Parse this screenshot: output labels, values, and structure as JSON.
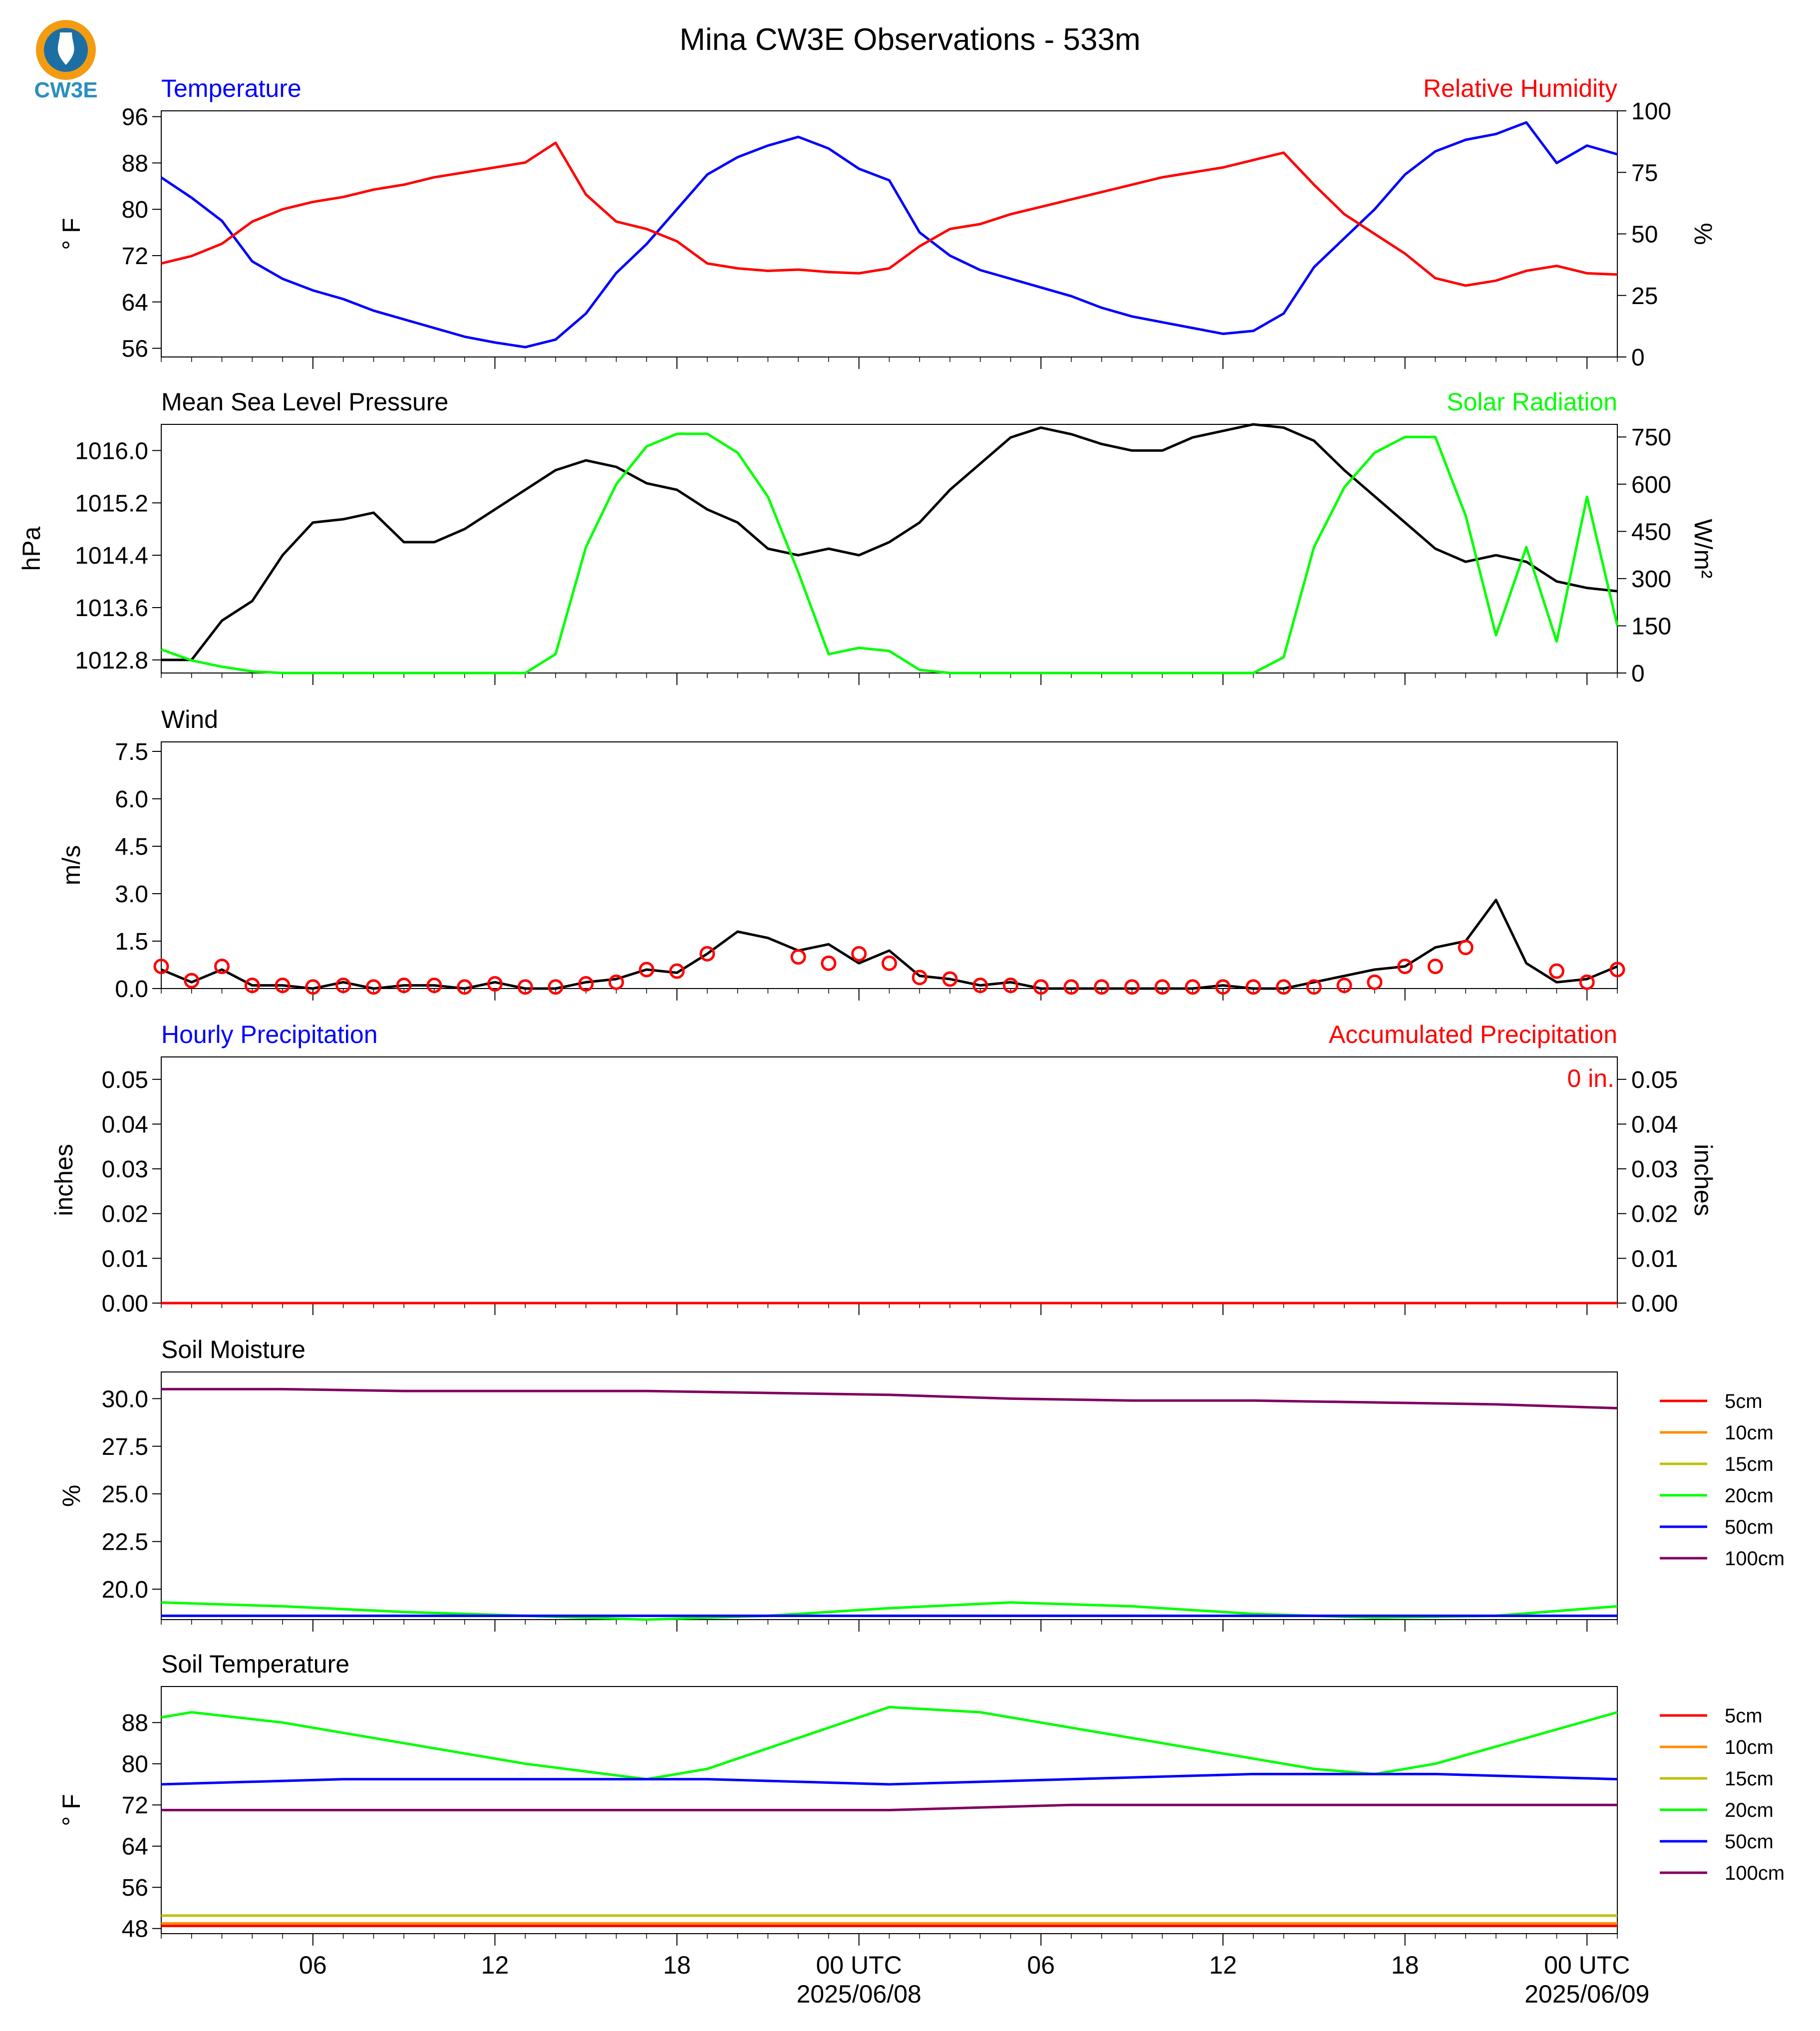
{
  "page": {
    "title": "Mina CW3E Observations - 533m",
    "logo_text": "CW3E",
    "colors": {
      "blue": "#0000ff",
      "red": "#ff0000",
      "green": "#00ff00",
      "black": "#000000",
      "orange": "#ff8c00",
      "olive": "#bfbf00",
      "purple": "#800060"
    }
  },
  "x_axis": {
    "range_hours": [
      0,
      48
    ],
    "ticks": [
      {
        "h": 5,
        "label": "06",
        "sub": ""
      },
      {
        "h": 11,
        "label": "12",
        "sub": ""
      },
      {
        "h": 17,
        "label": "18",
        "sub": ""
      },
      {
        "h": 23,
        "label": "00 UTC",
        "sub": "2025/06/08"
      },
      {
        "h": 29,
        "label": "06",
        "sub": ""
      },
      {
        "h": 35,
        "label": "12",
        "sub": ""
      },
      {
        "h": 41,
        "label": "18",
        "sub": ""
      },
      {
        "h": 47,
        "label": "00 UTC",
        "sub": "2025/06/09"
      }
    ]
  },
  "chart_data": [
    {
      "type": "line",
      "left_title": "Temperature",
      "right_title": "Relative Humidity",
      "ylabel": "° F",
      "ylabel_right": "%",
      "ylim": [
        54.5,
        97
      ],
      "yticks": [
        "56",
        "64",
        "72",
        "80",
        "88",
        "96"
      ],
      "ylim_right": [
        0,
        100
      ],
      "yticks_right": [
        "0",
        "25",
        "50",
        "75",
        "100"
      ],
      "series": [
        {
          "axis": "left",
          "color": "#0000ff",
          "x": [
            0,
            1,
            2,
            3,
            4,
            5,
            6,
            7,
            8,
            9,
            10,
            11,
            12,
            13,
            14,
            15,
            16,
            17,
            18,
            19,
            20,
            21,
            22,
            23,
            24,
            25,
            26,
            27,
            28,
            29,
            30,
            31,
            32,
            33,
            34,
            35,
            36,
            37,
            38,
            39,
            40,
            41,
            42,
            43,
            44,
            45,
            46,
            47,
            48
          ],
          "y": [
            85.5,
            82,
            78,
            71,
            68,
            66,
            64.5,
            62.5,
            61,
            59.5,
            58,
            57,
            56.2,
            57.5,
            62,
            69,
            74,
            80,
            86,
            89,
            91,
            92.5,
            90.5,
            87,
            85,
            76,
            72,
            69.5,
            68,
            66.5,
            65,
            63,
            61.5,
            60.5,
            59.5,
            58.5,
            59,
            62,
            70,
            75,
            80,
            86,
            90,
            92,
            93,
            95,
            88,
            91,
            89.5
          ]
        },
        {
          "axis": "right",
          "color": "#ff0000",
          "x": [
            0,
            1,
            2,
            3,
            4,
            5,
            6,
            7,
            8,
            9,
            10,
            11,
            12,
            13,
            14,
            15,
            16,
            17,
            18,
            19,
            20,
            21,
            22,
            23,
            24,
            25,
            26,
            27,
            28,
            29,
            30,
            31,
            32,
            33,
            34,
            35,
            36,
            37,
            38,
            39,
            40,
            41,
            42,
            43,
            44,
            45,
            46,
            47,
            48
          ],
          "y": [
            38,
            41,
            46,
            55,
            60,
            63,
            65,
            68,
            70,
            73,
            75,
            77,
            79,
            87,
            66,
            55,
            52,
            47,
            38,
            36,
            35,
            35.5,
            34.5,
            34,
            36,
            45,
            52,
            54,
            58,
            61,
            64,
            67,
            70,
            73,
            75,
            77,
            80,
            83,
            70,
            58,
            50,
            42,
            32,
            29,
            31,
            35,
            37,
            34,
            33.5
          ]
        }
      ]
    },
    {
      "type": "line",
      "left_title": "Mean Sea Level Pressure",
      "right_title": "Solar Radiation",
      "ylabel": "hPa",
      "ylabel_right": "W/m²",
      "ylim": [
        12.6,
        16.4
      ],
      "yticks": [
        "1012.8",
        "1013.6",
        "1014.4",
        "1015.2",
        "1016.0"
      ],
      "yticks_left_vals": [
        12.8,
        13.6,
        14.4,
        15.2,
        16.0
      ],
      "ylim_right": [
        0,
        790
      ],
      "yticks_right": [
        "0",
        "150",
        "300",
        "450",
        "600",
        "750"
      ],
      "series": [
        {
          "axis": "left",
          "color": "#000000",
          "x": [
            0,
            1,
            2,
            3,
            4,
            5,
            6,
            7,
            8,
            9,
            10,
            11,
            12,
            13,
            14,
            15,
            16,
            17,
            18,
            19,
            20,
            21,
            22,
            23,
            24,
            25,
            26,
            27,
            28,
            29,
            30,
            31,
            32,
            33,
            34,
            35,
            36,
            37,
            38,
            39,
            40,
            41,
            42,
            43,
            44,
            45,
            46,
            47,
            48
          ],
          "y": [
            12.8,
            12.8,
            13.4,
            13.7,
            14.4,
            14.9,
            14.95,
            15.05,
            14.6,
            14.6,
            14.8,
            15.1,
            15.4,
            15.7,
            15.85,
            15.75,
            15.5,
            15.4,
            15.1,
            14.9,
            14.5,
            14.4,
            14.5,
            14.4,
            14.6,
            14.9,
            15.4,
            15.8,
            16.2,
            16.35,
            16.25,
            16.1,
            16.0,
            16.0,
            16.2,
            16.3,
            16.4,
            16.35,
            16.15,
            15.7,
            15.3,
            14.9,
            14.5,
            14.3,
            14.4,
            14.3,
            14.0,
            13.9,
            13.85
          ]
        },
        {
          "axis": "right",
          "color": "#00ff00",
          "x": [
            0,
            1,
            2,
            3,
            4,
            5,
            6,
            7,
            8,
            9,
            10,
            11,
            12,
            13,
            14,
            15,
            16,
            17,
            18,
            19,
            20,
            21,
            22,
            23,
            24,
            25,
            26,
            27,
            28,
            29,
            30,
            31,
            32,
            33,
            34,
            35,
            36,
            37,
            38,
            39,
            40,
            41,
            42,
            43,
            44,
            45,
            46,
            47,
            48
          ],
          "y": [
            75,
            40,
            20,
            5,
            0,
            0,
            0,
            0,
            0,
            0,
            0,
            0,
            0,
            60,
            400,
            600,
            720,
            760,
            760,
            700,
            560,
            320,
            60,
            80,
            70,
            10,
            0,
            0,
            0,
            0,
            0,
            0,
            0,
            0,
            0,
            0,
            0,
            50,
            400,
            590,
            700,
            750,
            750,
            500,
            120,
            400,
            100,
            560,
            150
          ]
        }
      ]
    },
    {
      "type": "line",
      "left_title": "Wind",
      "ylabel": "m/s",
      "ylim": [
        0,
        7.8
      ],
      "yticks": [
        "0.0",
        "1.5",
        "3.0",
        "4.5",
        "6.0",
        "7.5"
      ],
      "series": [
        {
          "axis": "left",
          "color": "#000000",
          "x": [
            0,
            1,
            2,
            3,
            4,
            5,
            6,
            7,
            8,
            9,
            10,
            11,
            12,
            13,
            14,
            15,
            16,
            17,
            18,
            19,
            20,
            21,
            22,
            23,
            24,
            25,
            26,
            27,
            28,
            29,
            30,
            31,
            32,
            33,
            34,
            35,
            36,
            37,
            38,
            39,
            40,
            41,
            42,
            43,
            44,
            45,
            46,
            47,
            48
          ],
          "y": [
            0.6,
            0.2,
            0.6,
            0.1,
            0.1,
            0.0,
            0.2,
            0.0,
            0.1,
            0.1,
            0.0,
            0.2,
            0.0,
            0.0,
            0.2,
            0.3,
            0.6,
            0.5,
            1.1,
            1.8,
            1.6,
            1.2,
            1.4,
            0.8,
            1.2,
            0.4,
            0.3,
            0.1,
            0.2,
            0.0,
            0.0,
            0.0,
            0.0,
            0.0,
            0.0,
            0.1,
            0.0,
            0.0,
            0.2,
            0.4,
            0.6,
            0.7,
            1.3,
            1.5,
            2.8,
            0.8,
            0.2,
            0.3,
            0.7
          ]
        },
        {
          "axis": "marker",
          "color": "#ff0000",
          "x": [
            0,
            1,
            2,
            3,
            4,
            5,
            6,
            7,
            8,
            9,
            10,
            11,
            12,
            13,
            14,
            15,
            16,
            17,
            18,
            21,
            22,
            23,
            24,
            25,
            26,
            27,
            28,
            29,
            30,
            31,
            32,
            33,
            34,
            35,
            36,
            37,
            38,
            39,
            40,
            41,
            42,
            43,
            46,
            47,
            48
          ],
          "y": [
            0.7,
            0.25,
            0.7,
            0.1,
            0.1,
            0.05,
            0.1,
            0.05,
            0.1,
            0.1,
            0.05,
            0.15,
            0.05,
            0.05,
            0.15,
            0.2,
            0.6,
            0.55,
            1.1,
            1.0,
            0.8,
            1.1,
            0.8,
            0.35,
            0.3,
            0.1,
            0.1,
            0.05,
            0.05,
            0.05,
            0.05,
            0.05,
            0.05,
            0.05,
            0.05,
            0.05,
            0.05,
            0.1,
            0.2,
            0.7,
            0.7,
            1.3,
            0.55,
            0.2,
            0.6
          ]
        }
      ]
    },
    {
      "type": "line",
      "left_title": "Hourly Precipitation",
      "right_title": "Accumulated Precipitation",
      "ylabel": "inches",
      "ylabel_right": "inches",
      "annotation": "0 in.",
      "ylim": [
        0,
        0.055
      ],
      "yticks": [
        "0.00",
        "0.01",
        "0.02",
        "0.03",
        "0.04",
        "0.05"
      ],
      "yticks_right": [
        "0.00",
        "0.01",
        "0.02",
        "0.03",
        "0.04",
        "0.05"
      ],
      "series": [
        {
          "axis": "left",
          "color": "#0000ff",
          "x": [
            0,
            48
          ],
          "y": [
            0,
            0
          ]
        },
        {
          "axis": "left",
          "color": "#ff0000",
          "x": [
            0,
            48
          ],
          "y": [
            0,
            0
          ]
        }
      ]
    },
    {
      "type": "line",
      "left_title": "Soil Moisture",
      "ylabel": "%",
      "ylim": [
        18.4,
        31.4
      ],
      "yticks": [
        "20.0",
        "22.5",
        "25.0",
        "27.5",
        "30.0"
      ],
      "legend": [
        "5cm",
        "10cm",
        "15cm",
        "20cm",
        "50cm",
        "100cm"
      ],
      "legend_colors": [
        "#ff0000",
        "#ff8c00",
        "#bfbf00",
        "#00ff00",
        "#0000ff",
        "#800060"
      ],
      "series": [
        {
          "axis": "left",
          "color": "#800060",
          "x": [
            0,
            4,
            8,
            12,
            16,
            20,
            24,
            28,
            32,
            36,
            40,
            44,
            48
          ],
          "y": [
            30.5,
            30.5,
            30.4,
            30.4,
            30.4,
            30.3,
            30.2,
            30.0,
            29.9,
            29.9,
            29.8,
            29.7,
            29.5
          ]
        },
        {
          "axis": "left",
          "color": "#00ff00",
          "x": [
            0,
            4,
            8,
            12,
            16,
            20,
            24,
            28,
            32,
            36,
            40,
            44,
            48
          ],
          "y": [
            19.3,
            19.1,
            18.8,
            18.6,
            18.4,
            18.6,
            19.0,
            19.3,
            19.1,
            18.7,
            18.5,
            18.6,
            19.1
          ]
        },
        {
          "axis": "left",
          "color": "#0000ff",
          "x": [
            0,
            4,
            8,
            12,
            16,
            20,
            24,
            28,
            32,
            36,
            40,
            44,
            48
          ],
          "y": [
            18.6,
            18.6,
            18.6,
            18.6,
            18.6,
            18.6,
            18.6,
            18.6,
            18.6,
            18.6,
            18.6,
            18.6,
            18.6
          ]
        }
      ]
    },
    {
      "type": "line",
      "left_title": "Soil Temperature",
      "ylabel": "° F",
      "ylim": [
        47,
        95
      ],
      "yticks": [
        "48",
        "56",
        "64",
        "72",
        "80",
        "88"
      ],
      "legend": [
        "5cm",
        "10cm",
        "15cm",
        "20cm",
        "50cm",
        "100cm"
      ],
      "legend_colors": [
        "#ff0000",
        "#ff8c00",
        "#bfbf00",
        "#00ff00",
        "#0000ff",
        "#800060"
      ],
      "series": [
        {
          "axis": "left",
          "color": "#00ff00",
          "x": [
            0,
            1,
            4,
            8,
            12,
            16,
            18,
            21,
            24,
            27,
            30,
            34,
            38,
            40,
            42,
            45,
            48
          ],
          "y": [
            89,
            90,
            88,
            84,
            80,
            77,
            79,
            85,
            91,
            90,
            87,
            83,
            79,
            78,
            80,
            85,
            90
          ]
        },
        {
          "axis": "left",
          "color": "#0000ff",
          "x": [
            0,
            6,
            12,
            18,
            24,
            30,
            36,
            42,
            48
          ],
          "y": [
            76,
            77,
            77,
            77,
            76,
            77,
            78,
            78,
            77
          ]
        },
        {
          "axis": "left",
          "color": "#800060",
          "x": [
            0,
            6,
            12,
            18,
            24,
            30,
            36,
            42,
            48
          ],
          "y": [
            71,
            71,
            71,
            71,
            71,
            72,
            72,
            72,
            72
          ]
        },
        {
          "axis": "left",
          "color": "#bfbf00",
          "x": [
            0,
            48
          ],
          "y": [
            50.5,
            50.5
          ]
        },
        {
          "axis": "left",
          "color": "#ff8c00",
          "x": [
            0,
            48
          ],
          "y": [
            49,
            49
          ]
        },
        {
          "axis": "left",
          "color": "#ff0000",
          "x": [
            0,
            48
          ],
          "y": [
            48.5,
            48.5
          ]
        }
      ]
    }
  ]
}
